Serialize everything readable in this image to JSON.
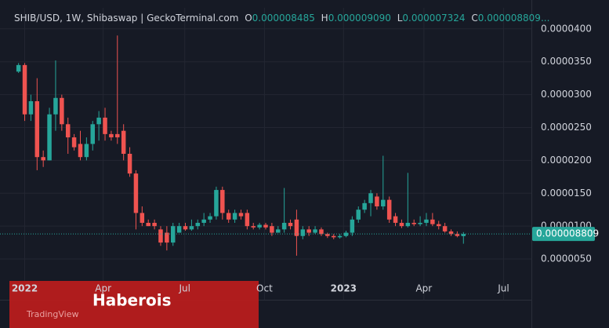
{
  "chart_data": {
    "type": "candlestick",
    "header": {
      "symbol": "SHIB/USD, 1W, Shibaswap | GeckoTerminal.com",
      "o_label": "O",
      "o_value": "0.000008485",
      "h_label": "H",
      "h_value": "0.000009090",
      "l_label": "L",
      "l_value": "0.000007324",
      "c_label": "C",
      "c_value": "0.000008809..."
    },
    "open": [
      3.35e-05,
      3.45e-05,
      2.7e-05,
      2.9e-05,
      2.05e-05,
      2e-05,
      2.7e-05,
      2.95e-05,
      2.55e-05,
      2.35e-05,
      2.25e-05,
      2.05e-05,
      2.25e-05,
      2.55e-05,
      2.65e-05,
      2.4e-05,
      2.4e-05,
      2.45e-05,
      2.1e-05,
      1.8e-05,
      1.2e-05,
      1.05e-05,
      1.05e-05,
      9.5e-06,
      9e-06,
      7.5e-06,
      9e-06,
      1e-05,
      9.5e-06,
      1e-05,
      1.05e-05,
      1.1e-05,
      1.15e-05,
      1.55e-05,
      1.2e-05,
      1.1e-05,
      1.2e-05,
      1.2e-05,
      1e-05,
      9.8e-06,
      1.02e-05,
      1e-05,
      9e-06,
      9.5e-06,
      1.05e-05,
      1.1e-05,
      8.5e-06,
      9.5e-06,
      9e-06,
      9.5e-06,
      8.8e-06,
      8.5e-06,
      8.3e-06,
      8.5e-06,
      9e-06,
      1.1e-05,
      1.25e-05,
      1.35e-05,
      1.45e-05,
      1.3e-05,
      1.4e-05,
      1.15e-05,
      1.05e-05,
      1e-05,
      1.05e-05,
      1.03e-05,
      1.05e-05,
      1.1e-05,
      1.03e-05,
      1e-05,
      9.2e-06,
      8.8e-06,
      8.485e-06
    ],
    "high": [
      3.48e-05,
      3.48e-05,
      3e-05,
      3.25e-05,
      2.15e-05,
      2.8e-05,
      3.52e-05,
      3e-05,
      2.65e-05,
      2.4e-05,
      2.45e-05,
      2.35e-05,
      2.6e-05,
      2.75e-05,
      2.8e-05,
      2.45e-05,
      3.9e-05,
      2.55e-05,
      2.2e-05,
      1.85e-05,
      1.3e-05,
      1.1e-05,
      1.1e-05,
      1e-05,
      1e-05,
      1.05e-05,
      1.05e-05,
      1.05e-05,
      1.1e-05,
      1.1e-05,
      1.2e-05,
      1.2e-05,
      1.6e-05,
      1.6e-05,
      1.25e-05,
      1.25e-05,
      1.25e-05,
      1.25e-05,
      1.05e-05,
      1.05e-05,
      1.05e-05,
      1.05e-05,
      1e-05,
      1.58e-05,
      1.1e-05,
      1.25e-05,
      1e-05,
      1e-05,
      1e-05,
      9.8e-06,
      9e-06,
      8.8e-06,
      8.8e-06,
      9.3e-06,
      1.15e-05,
      1.3e-05,
      1.4e-05,
      1.55e-05,
      1.5e-05,
      2.07e-05,
      1.45e-05,
      1.2e-05,
      1.1e-05,
      1.81e-05,
      1.1e-05,
      1.15e-05,
      1.2e-05,
      1.2e-05,
      1.08e-05,
      1.05e-05,
      9.5e-06,
      9.2e-06,
      9.09e-06
    ],
    "low": [
      3.33e-05,
      2.6e-05,
      2.6e-05,
      1.85e-05,
      1.9e-05,
      2e-05,
      2.45e-05,
      2.45e-05,
      2.1e-05,
      2.15e-05,
      2e-05,
      2e-05,
      2.15e-05,
      2.3e-05,
      2.3e-05,
      2.3e-05,
      2.25e-05,
      2e-05,
      1.75e-05,
      9.5e-06,
      1e-05,
      1e-05,
      9.5e-06,
      7e-06,
      6.3e-06,
      7e-06,
      9e-06,
      9.3e-06,
      9.3e-06,
      9.5e-06,
      1e-05,
      1.05e-05,
      1.1e-05,
      1.1e-05,
      1.05e-05,
      1.05e-05,
      1.1e-05,
      9.5e-06,
      9.5e-06,
      9.5e-06,
      9.5e-06,
      8.5e-06,
      9e-06,
      9e-06,
      9.5e-06,
      5.5e-06,
      8e-06,
      8.5e-06,
      8.8e-06,
      8.5e-06,
      8.2e-06,
      8e-06,
      8.1e-06,
      8.3e-06,
      8.5e-06,
      1.05e-05,
      1.2e-05,
      1.15e-05,
      1.25e-05,
      1.25e-05,
      1.05e-05,
      1e-05,
      9.7e-06,
      9.8e-06,
      1e-05,
      1e-05,
      1e-05,
      1e-05,
      9.5e-06,
      9e-06,
      8.5e-06,
      8.3e-06,
      7.324e-06
    ],
    "close": [
      3.45e-05,
      2.7e-05,
      2.9e-05,
      2.05e-05,
      2e-05,
      2.7e-05,
      2.95e-05,
      2.55e-05,
      2.35e-05,
      2.2e-05,
      2.05e-05,
      2.25e-05,
      2.55e-05,
      2.65e-05,
      2.4e-05,
      2.35e-05,
      2.35e-05,
      2.1e-05,
      1.8e-05,
      1.2e-05,
      1.05e-05,
      1e-05,
      1e-05,
      7.5e-06,
      7.5e-06,
      1e-05,
      1e-05,
      9.5e-06,
      1e-05,
      1.05e-05,
      1.1e-05,
      1.15e-05,
      1.55e-05,
      1.2e-05,
      1.1e-05,
      1.2e-05,
      1.15e-05,
      1e-05,
      9.8e-06,
      1.02e-05,
      9.8e-06,
      9e-06,
      9.5e-06,
      1.05e-05,
      1e-05,
      8.5e-06,
      9.5e-06,
      9e-06,
      9.5e-06,
      8.8e-06,
      8.5e-06,
      8.3e-06,
      8.5e-06,
      9e-06,
      1.1e-05,
      1.25e-05,
      1.35e-05,
      1.5e-05,
      1.3e-05,
      1.4e-05,
      1.1e-05,
      1.05e-05,
      1e-05,
      1.05e-05,
      1.03e-05,
      1.05e-05,
      1.1e-05,
      1.03e-05,
      1e-05,
      9.2e-06,
      8.8e-06,
      8.5e-06,
      8.809e-06
    ],
    "up_color": "#26a69a",
    "down_color": "#ef5350",
    "xlim": [
      -3,
      83
    ],
    "xticks": [
      {
        "value": 1,
        "label": "2022"
      },
      {
        "value": 13.7,
        "label": "Apr"
      },
      {
        "value": 26.9,
        "label": "Jul"
      },
      {
        "value": 39.8,
        "label": "Oct"
      },
      {
        "value": 52.6,
        "label": "2023"
      },
      {
        "value": 65.6,
        "label": "Apr"
      },
      {
        "value": 78.5,
        "label": "Jul"
      }
    ],
    "ylim": [
      -1.2e-06,
      4.32e-05
    ],
    "yticks": [
      {
        "value": 5e-06,
        "label": "0.0000050"
      },
      {
        "value": 1e-05,
        "label": "0.0000100"
      },
      {
        "value": 1.5e-05,
        "label": "0.0000150"
      },
      {
        "value": 2e-05,
        "label": "0.0000200"
      },
      {
        "value": 2.5e-05,
        "label": "0.0000250"
      },
      {
        "value": 3e-05,
        "label": "0.0000300"
      },
      {
        "value": 3.5e-05,
        "label": "0.0000350"
      },
      {
        "value": 4e-05,
        "label": "0.0000400"
      }
    ],
    "grid": true,
    "watermark": "TradingView",
    "overlay_text": "Haberois"
  }
}
